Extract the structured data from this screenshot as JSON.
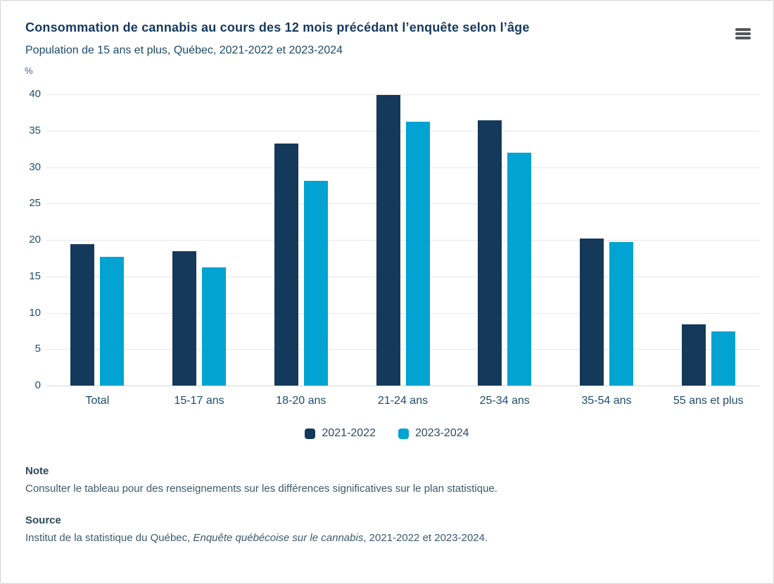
{
  "card": {
    "title": "Consommation de cannabis au cours des 12 mois précédant l’enquête selon l’âge",
    "subtitle": "Population de 15 ans et plus, Québec, 2021-2022 et 2023-2024",
    "menu_icon": "hamburger-menu"
  },
  "chart_data": {
    "type": "bar",
    "title": "Consommation de cannabis au cours des 12 mois précédant l’enquête selon l’âge",
    "subtitle": "Population de 15 ans et plus, Québec, 2021-2022 et 2023-2024",
    "y_axis_unit": "%",
    "ylim": [
      0,
      40
    ],
    "y_ticks": [
      0,
      5,
      10,
      15,
      20,
      25,
      30,
      35,
      40
    ],
    "grid": true,
    "legend_position": "bottom-center",
    "categories": [
      "Total",
      "15-17 ans",
      "18-20 ans",
      "21-24 ans",
      "25-34 ans",
      "35-54 ans",
      "55 ans et plus"
    ],
    "series": [
      {
        "name": "2021-2022",
        "color": "#14395b",
        "values": [
          19.4,
          18.5,
          33.2,
          39.9,
          36.4,
          20.2,
          8.4
        ]
      },
      {
        "name": "2023-2024",
        "color": "#00a3d1",
        "values": [
          17.7,
          16.2,
          28.1,
          36.2,
          32.0,
          19.7,
          7.4
        ]
      }
    ]
  },
  "note": {
    "heading": "Note",
    "text": "Consulter le tableau pour des renseignements sur les différences significatives sur le plan statistique."
  },
  "source": {
    "heading": "Source",
    "prefix": "Institut de la statistique du Québec, ",
    "italic": "Enquête québécoise sur le cannabis",
    "suffix": ", 2021-2022 et 2023-2024."
  }
}
